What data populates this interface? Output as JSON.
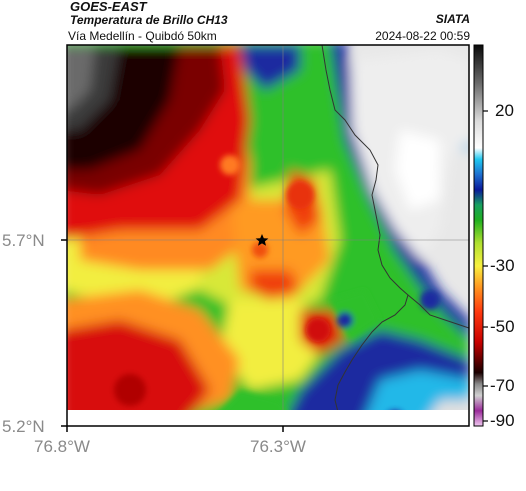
{
  "header": {
    "source": "GOES-EAST",
    "product": "Temperatura de Brillo CH13",
    "region": "Vía Medellín - Quibdó 50km",
    "org": "SIATA",
    "datetime": "2024-08-22 00:59"
  },
  "axes": {
    "lat_ticks": [
      {
        "label": "5.7°N",
        "value": 5.7
      },
      {
        "label": "5.2°N",
        "value": 5.2
      }
    ],
    "lon_ticks": [
      {
        "label": "76.8°W",
        "value": -76.8
      },
      {
        "label": "76.3°W",
        "value": -76.3
      }
    ]
  },
  "map": {
    "marker": "star-icon",
    "marker_lat": 5.7,
    "marker_lon": -76.35
  },
  "colorbar": {
    "ticks": [
      {
        "label": "20",
        "value": 20
      },
      {
        "label": "-30",
        "value": -30
      },
      {
        "label": "-50",
        "value": -50
      },
      {
        "label": "-70",
        "value": -70
      },
      {
        "label": "-90",
        "value": -90
      }
    ],
    "range": [
      -92,
      38
    ]
  },
  "colors": {
    "cold_top": "#7a0000",
    "red": "#e01010",
    "orange": "#ff8a20",
    "yellow": "#f2ee40",
    "green": "#2ec02a",
    "blue": "#0a1a9a",
    "cyan": "#1ec8f0",
    "warm_gray": "#e8e8e8",
    "dark_gray": "#2a2a2a"
  }
}
